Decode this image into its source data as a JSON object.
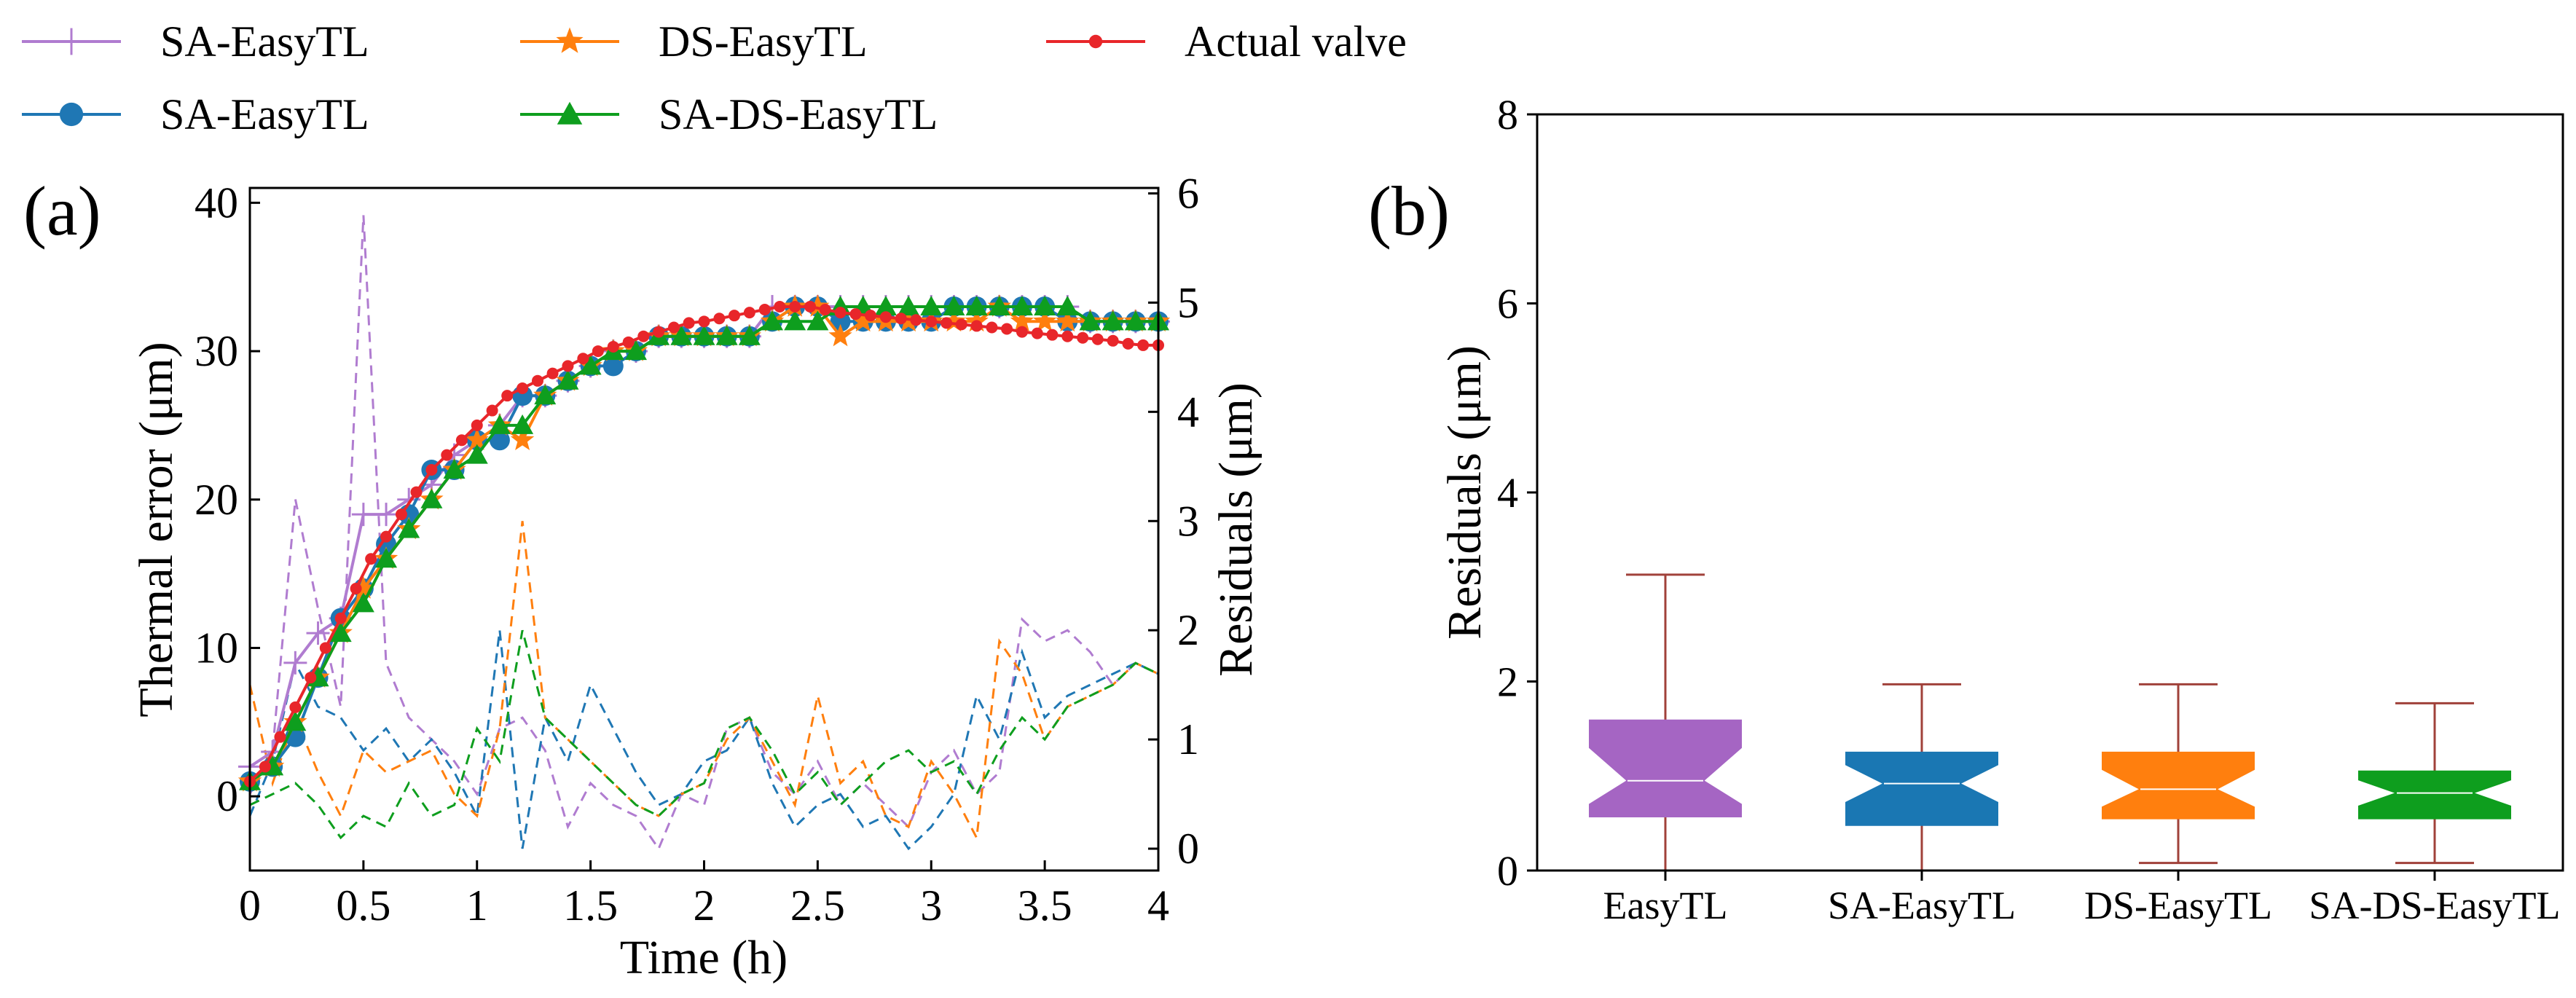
{
  "legend": {
    "items": [
      {
        "label": "SA-EasyTL",
        "color": "#b07cd0",
        "marker": "plus"
      },
      {
        "label": "DS-EasyTL",
        "color": "#ff7f0e",
        "marker": "star"
      },
      {
        "label": "Actual valve",
        "color": "#e8262a",
        "marker": "dot"
      },
      {
        "label": "SA-EasyTL",
        "color": "#1f77b4",
        "marker": "circle"
      },
      {
        "label": "SA-DS-EasyTL",
        "color": "#0e9e1e",
        "marker": "triangle"
      }
    ]
  },
  "colors": {
    "purple": "#b07cd0",
    "blue": "#1f77b4",
    "orange": "#ff7f0e",
    "green": "#0e9e1e",
    "red": "#e8262a",
    "box_whisker": "#a0413a"
  },
  "chart_data": [
    {
      "type": "line",
      "panel_label": "(a)",
      "xlabel": "Time (h)",
      "ylabel": "Thermal error (μm)",
      "ylabel_right": "Residuals (μm)",
      "xlim": [
        0,
        4
      ],
      "ylim": [
        -5,
        41
      ],
      "ylim_right": [
        -0.2,
        6.05
      ],
      "xticks": [
        "0",
        "0.5",
        "1",
        "1.5",
        "2",
        "2.5",
        "3",
        "3.5",
        "4"
      ],
      "yticks": [
        "0",
        "10",
        "20",
        "30",
        "40"
      ],
      "yticks_right": [
        "0",
        "1",
        "2",
        "3",
        "4",
        "5",
        "6"
      ],
      "series": [
        {
          "name": "Actual valve",
          "axis": "left",
          "color": "#e8262a",
          "marker": "dot",
          "style": "solid",
          "x": [
            0,
            0.067,
            0.133,
            0.2,
            0.267,
            0.333,
            0.4,
            0.467,
            0.533,
            0.6,
            0.667,
            0.733,
            0.8,
            0.867,
            0.933,
            1,
            1.067,
            1.133,
            1.2,
            1.267,
            1.333,
            1.4,
            1.467,
            1.533,
            1.6,
            1.667,
            1.733,
            1.8,
            1.867,
            1.933,
            2,
            2.067,
            2.133,
            2.2,
            2.267,
            2.333,
            2.4,
            2.467,
            2.533,
            2.6,
            2.667,
            2.733,
            2.8,
            2.867,
            2.933,
            3,
            3.067,
            3.133,
            3.2,
            3.267,
            3.333,
            3.4,
            3.467,
            3.533,
            3.6,
            3.667,
            3.733,
            3.8,
            3.867,
            3.933,
            4
          ],
          "y": [
            1,
            2,
            4,
            6,
            8,
            10,
            12,
            14,
            16,
            17.5,
            19,
            20.5,
            22,
            23,
            24,
            25,
            26,
            27,
            27.5,
            28,
            28.5,
            29,
            29.5,
            30,
            30.3,
            30.6,
            31,
            31.3,
            31.6,
            31.9,
            32,
            32.2,
            32.4,
            32.6,
            32.8,
            33,
            33,
            33,
            32.8,
            32.6,
            32.5,
            32.4,
            32.3,
            32.2,
            32.1,
            32,
            31.9,
            31.8,
            31.7,
            31.6,
            31.5,
            31.3,
            31.2,
            31.1,
            31,
            30.9,
            30.8,
            30.7,
            30.5,
            30.4,
            30.4
          ]
        },
        {
          "name": "SA-EasyTL (+)",
          "axis": "left",
          "color": "#b07cd0",
          "marker": "plus",
          "style": "solid",
          "x": [
            0,
            0.1,
            0.2,
            0.3,
            0.4,
            0.5,
            0.6,
            0.7,
            0.8,
            0.9,
            1,
            1.1,
            1.2,
            1.3,
            1.4,
            1.5,
            1.6,
            1.7,
            1.8,
            1.9,
            2,
            2.1,
            2.2,
            2.3,
            2.4,
            2.5,
            2.6,
            2.7,
            2.8,
            2.9,
            3,
            3.1,
            3.2,
            3.3,
            3.4,
            3.5,
            3.6,
            3.7,
            3.8,
            3.9,
            4
          ],
          "y": [
            2,
            3,
            9,
            11,
            12,
            19,
            19,
            20,
            21,
            23,
            24,
            25,
            27,
            27,
            28,
            29,
            30,
            30,
            31,
            31,
            31,
            31,
            31,
            33,
            33,
            33,
            33,
            33,
            33,
            33,
            33,
            33,
            33,
            33,
            33,
            33,
            33,
            32,
            32,
            32,
            32
          ]
        },
        {
          "name": "SA-EasyTL (o)",
          "axis": "left",
          "color": "#1f77b4",
          "marker": "circle",
          "style": "solid",
          "x": [
            0,
            0.1,
            0.2,
            0.3,
            0.4,
            0.5,
            0.6,
            0.7,
            0.8,
            0.9,
            1,
            1.1,
            1.2,
            1.3,
            1.4,
            1.5,
            1.6,
            1.7,
            1.8,
            1.9,
            2,
            2.1,
            2.2,
            2.3,
            2.4,
            2.5,
            2.6,
            2.7,
            2.8,
            2.9,
            3,
            3.1,
            3.2,
            3.3,
            3.4,
            3.5,
            3.6,
            3.7,
            3.8,
            3.9,
            4
          ],
          "y": [
            1,
            2,
            4,
            8,
            12,
            14,
            17,
            19,
            22,
            22,
            24,
            24,
            27,
            27,
            28,
            29,
            29,
            30,
            31,
            31,
            31,
            31,
            31,
            32,
            33,
            33,
            32,
            32,
            32,
            32,
            32,
            33,
            33,
            33,
            33,
            33,
            32,
            32,
            32,
            32,
            32
          ]
        },
        {
          "name": "DS-EasyTL",
          "axis": "left",
          "color": "#ff7f0e",
          "marker": "star",
          "style": "solid",
          "x": [
            0,
            0.1,
            0.2,
            0.3,
            0.4,
            0.5,
            0.6,
            0.7,
            0.8,
            0.9,
            1,
            1.1,
            1.2,
            1.3,
            1.4,
            1.5,
            1.6,
            1.7,
            1.8,
            1.9,
            2,
            2.1,
            2.2,
            2.3,
            2.4,
            2.5,
            2.6,
            2.7,
            2.8,
            2.9,
            3,
            3.1,
            3.2,
            3.3,
            3.4,
            3.5,
            3.6,
            3.7,
            3.8,
            3.9,
            4
          ],
          "y": [
            1,
            2,
            5,
            8,
            11,
            14,
            16,
            18,
            20,
            22,
            24,
            25,
            24,
            27,
            28,
            29,
            30,
            30,
            31,
            31,
            31,
            31,
            31,
            32,
            33,
            33,
            31,
            32,
            32,
            32,
            32,
            32,
            32,
            33,
            32,
            32,
            32,
            32,
            32,
            32,
            32
          ]
        },
        {
          "name": "SA-DS-EasyTL",
          "axis": "left",
          "color": "#0e9e1e",
          "marker": "triangle",
          "style": "solid",
          "x": [
            0,
            0.1,
            0.2,
            0.3,
            0.4,
            0.5,
            0.6,
            0.7,
            0.8,
            0.9,
            1,
            1.1,
            1.2,
            1.3,
            1.4,
            1.5,
            1.6,
            1.7,
            1.8,
            1.9,
            2,
            2.1,
            2.2,
            2.3,
            2.4,
            2.5,
            2.6,
            2.7,
            2.8,
            2.9,
            3,
            3.1,
            3.2,
            3.3,
            3.4,
            3.5,
            3.6,
            3.7,
            3.8,
            3.9,
            4
          ],
          "y": [
            1,
            2,
            5,
            8,
            11,
            13,
            16,
            18,
            20,
            22,
            23,
            25,
            25,
            27,
            28,
            29,
            30,
            30,
            31,
            31,
            31,
            31,
            31,
            32,
            32,
            32,
            33,
            33,
            33,
            33,
            33,
            33,
            33,
            33,
            33,
            33,
            33,
            32,
            32,
            32,
            32
          ]
        },
        {
          "name": "SA-EasyTL residual (+)",
          "axis": "right",
          "color": "#b07cd0",
          "marker": "none",
          "style": "dashed",
          "x": [
            0,
            0.1,
            0.2,
            0.3,
            0.4,
            0.5,
            0.6,
            0.7,
            0.8,
            0.9,
            1,
            1.1,
            1.2,
            1.3,
            1.4,
            1.5,
            1.6,
            1.7,
            1.8,
            1.9,
            2,
            2.1,
            2.2,
            2.3,
            2.4,
            2.5,
            2.6,
            2.7,
            2.8,
            2.9,
            3,
            3.1,
            3.2,
            3.3,
            3.4,
            3.5,
            3.6,
            3.7,
            3.8,
            3.9,
            4
          ],
          "y": [
            0.5,
            0.9,
            3.2,
            2.2,
            1.3,
            5.8,
            1.7,
            1.2,
            1.0,
            0.8,
            0.5,
            1.1,
            1.2,
            0.9,
            0.2,
            0.6,
            0.4,
            0.3,
            0.0,
            0.5,
            0.4,
            1.1,
            1.2,
            0.7,
            0.5,
            0.8,
            0.4,
            0.6,
            0.4,
            0.2,
            0.7,
            0.9,
            0.5,
            0.7,
            2.1,
            1.9,
            2.0,
            1.8,
            1.5,
            1.7,
            1.6
          ]
        },
        {
          "name": "SA-EasyTL residual (o)",
          "axis": "right",
          "color": "#1f77b4",
          "marker": "none",
          "style": "dashed",
          "x": [
            0,
            0.1,
            0.2,
            0.3,
            0.4,
            0.5,
            0.6,
            0.7,
            0.8,
            0.9,
            1,
            1.1,
            1.2,
            1.3,
            1.4,
            1.5,
            1.6,
            1.7,
            1.8,
            1.9,
            2,
            2.1,
            2.2,
            2.3,
            2.4,
            2.5,
            2.6,
            2.7,
            2.8,
            2.9,
            3,
            3.1,
            3.2,
            3.3,
            3.4,
            3.5,
            3.6,
            3.7,
            3.8,
            3.9,
            4
          ],
          "y": [
            0.3,
            0.8,
            1.7,
            1.3,
            1.2,
            0.9,
            1.1,
            0.8,
            1.0,
            0.7,
            0.3,
            2.0,
            0.0,
            1.2,
            0.8,
            1.5,
            1.1,
            0.7,
            0.4,
            0.5,
            0.8,
            0.9,
            1.2,
            0.6,
            0.2,
            0.4,
            0.5,
            0.2,
            0.3,
            0.0,
            0.2,
            0.5,
            1.4,
            1.0,
            1.8,
            1.2,
            1.4,
            1.5,
            1.6,
            1.7,
            1.6
          ]
        },
        {
          "name": "DS-EasyTL residual",
          "axis": "right",
          "color": "#ff7f0e",
          "marker": "none",
          "style": "dashed",
          "x": [
            0,
            0.1,
            0.2,
            0.3,
            0.4,
            0.5,
            0.6,
            0.7,
            0.8,
            0.9,
            1,
            1.1,
            1.2,
            1.3,
            1.4,
            1.5,
            1.6,
            1.7,
            1.8,
            1.9,
            2,
            2.1,
            2.2,
            2.3,
            2.4,
            2.5,
            2.6,
            2.7,
            2.8,
            2.9,
            3,
            3.1,
            3.2,
            3.3,
            3.4,
            3.5,
            3.6,
            3.7,
            3.8,
            3.9,
            4
          ],
          "y": [
            1.5,
            0.6,
            1.2,
            0.7,
            0.3,
            0.9,
            0.7,
            0.8,
            0.9,
            0.5,
            0.3,
            1.1,
            3.0,
            1.2,
            1.0,
            0.8,
            0.6,
            0.4,
            0.3,
            0.5,
            0.6,
            1.0,
            1.2,
            0.8,
            0.4,
            1.4,
            0.6,
            0.8,
            0.3,
            0.2,
            0.8,
            0.5,
            0.1,
            1.9,
            1.6,
            1.0,
            1.3,
            1.4,
            1.5,
            1.7,
            1.6
          ]
        },
        {
          "name": "SA-DS-EasyTL residual",
          "axis": "right",
          "color": "#0e9e1e",
          "marker": "none",
          "style": "dashed",
          "x": [
            0,
            0.1,
            0.2,
            0.3,
            0.4,
            0.5,
            0.6,
            0.7,
            0.8,
            0.9,
            1,
            1.1,
            1.2,
            1.3,
            1.4,
            1.5,
            1.6,
            1.7,
            1.8,
            1.9,
            2,
            2.1,
            2.2,
            2.3,
            2.4,
            2.5,
            2.6,
            2.7,
            2.8,
            2.9,
            3,
            3.1,
            3.2,
            3.3,
            3.4,
            3.5,
            3.6,
            3.7,
            3.8,
            3.9,
            4
          ],
          "y": [
            0.4,
            0.5,
            0.6,
            0.4,
            0.1,
            0.3,
            0.2,
            0.6,
            0.3,
            0.4,
            1.1,
            0.8,
            2.0,
            1.2,
            1.0,
            0.8,
            0.6,
            0.4,
            0.3,
            0.5,
            0.6,
            1.1,
            1.2,
            0.9,
            0.5,
            0.7,
            0.4,
            0.6,
            0.8,
            0.9,
            0.7,
            0.8,
            0.5,
            0.9,
            1.2,
            1.0,
            1.3,
            1.4,
            1.5,
            1.7,
            1.6
          ]
        }
      ]
    },
    {
      "type": "box",
      "panel_label": "(b)",
      "ylabel": "Residuals (μm)",
      "ylim": [
        0,
        8
      ],
      "yticks": [
        "0",
        "2",
        "4",
        "6",
        "8"
      ],
      "categories": [
        "EasyTL",
        "SA-EasyTL",
        "DS-EasyTL",
        "SA-DS-EasyTL"
      ],
      "boxes": [
        {
          "name": "EasyTL",
          "color": "#a565c3",
          "whisker_low": 0.0,
          "q1": 0.57,
          "median": 0.95,
          "q3": 1.59,
          "whisker_high": 3.13,
          "notch_low": 0.7,
          "notch_high": 1.3
        },
        {
          "name": "SA-EasyTL",
          "color": "#1a77b3",
          "whisker_low": 0.0,
          "q1": 0.48,
          "median": 0.92,
          "q3": 1.25,
          "whisker_high": 1.97,
          "notch_low": 0.72,
          "notch_high": 1.12
        },
        {
          "name": "DS-EasyTL",
          "color": "#ff7f0e",
          "whisker_low": 0.08,
          "q1": 0.55,
          "median": 0.86,
          "q3": 1.25,
          "whisker_high": 1.97,
          "notch_low": 0.67,
          "notch_high": 1.07
        },
        {
          "name": "SA-DS-EasyTL",
          "color": "#0e9e1e",
          "whisker_low": 0.08,
          "q1": 0.55,
          "median": 0.82,
          "q3": 1.05,
          "whisker_high": 1.77,
          "notch_low": 0.68,
          "notch_high": 0.96
        }
      ]
    }
  ]
}
